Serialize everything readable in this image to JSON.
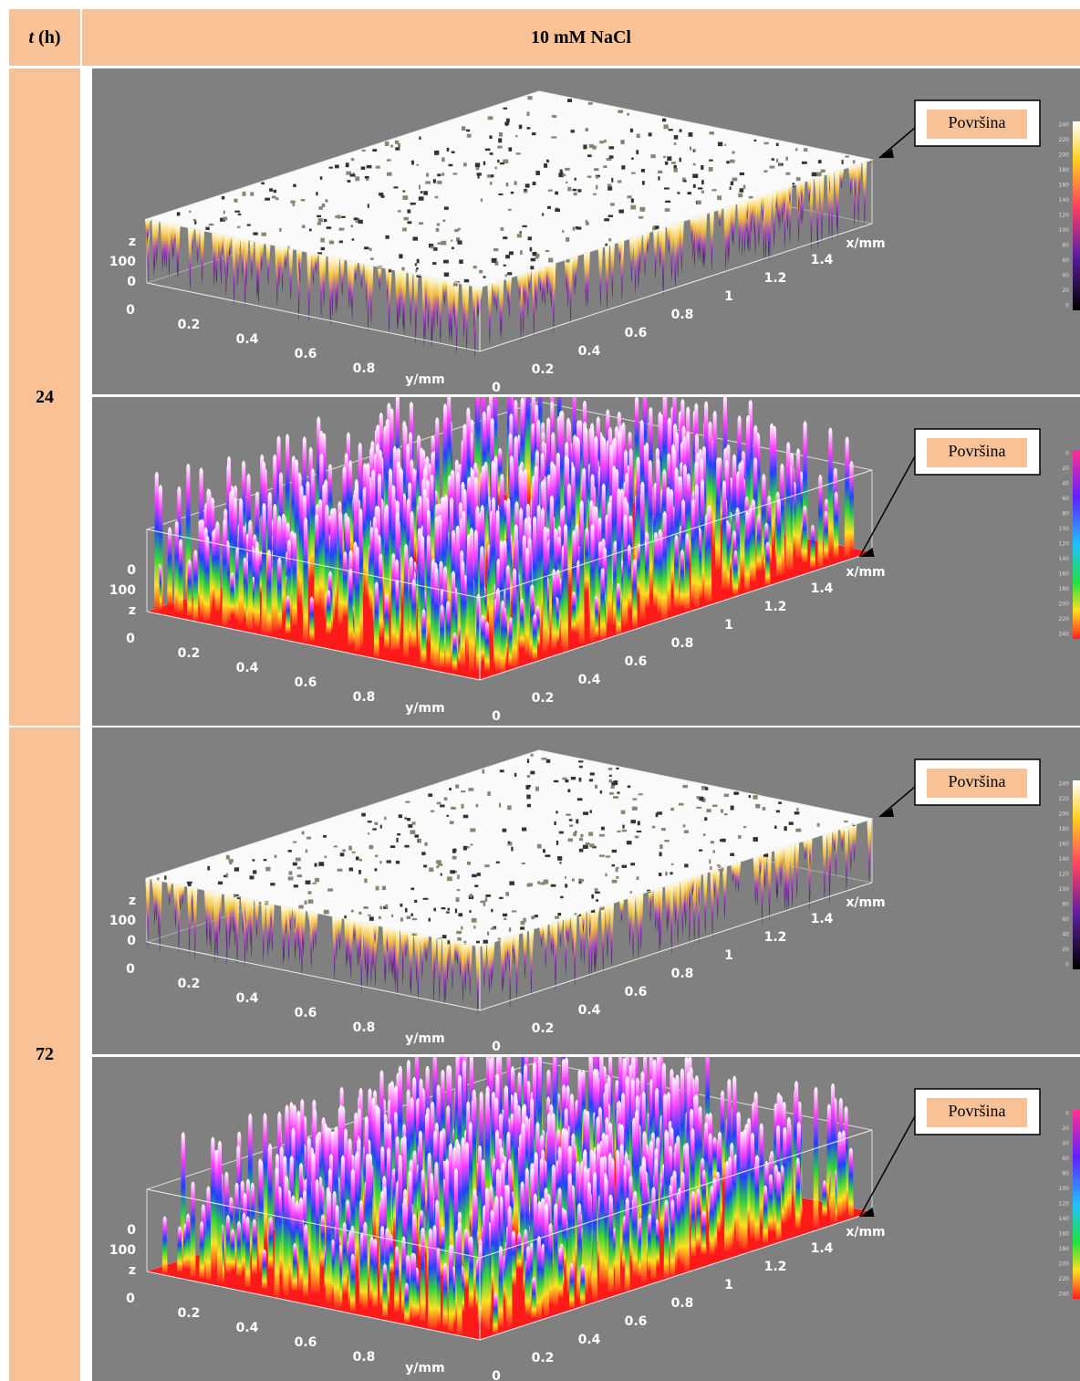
{
  "header": {
    "t_symbol": "t",
    "t_unit": "(h)",
    "title": "10 mM NaCl"
  },
  "rows": [
    {
      "time": "24",
      "panels": [
        {
          "callout": "Površina",
          "z_axis": [
            "z",
            "100",
            "0"
          ],
          "y_ticks": [
            "0",
            "0.2",
            "0.4",
            "0.6",
            "0.8"
          ],
          "y_label": "y/mm",
          "x_ticks": [
            "0",
            "0.2",
            "0.4",
            "0.6",
            "0.8",
            "1",
            "1.2",
            "1.4"
          ],
          "x_label": "x/mm",
          "colorbar_ticks": [
            "240",
            "220",
            "200",
            "180",
            "160",
            "140",
            "120",
            "100",
            "80",
            "60",
            "40",
            "20",
            "0"
          ]
        },
        {
          "callout": "Površina",
          "z_axis": [
            "0",
            "100",
            "z"
          ],
          "y_ticks": [
            "0",
            "0.2",
            "0.4",
            "0.6",
            "0.8"
          ],
          "y_label": "y/mm",
          "x_ticks": [
            "0",
            "0.2",
            "0.4",
            "0.6",
            "0.8",
            "1",
            "1.2",
            "1.4"
          ],
          "x_label": "x/mm",
          "colorbar_ticks": [
            "0",
            "20",
            "40",
            "60",
            "80",
            "100",
            "120",
            "140",
            "160",
            "180",
            "200",
            "220",
            "240"
          ]
        }
      ]
    },
    {
      "time": "72",
      "panels": [
        {
          "callout": "Površina",
          "z_axis": [
            "z",
            "100",
            "0"
          ],
          "y_ticks": [
            "0",
            "0.2",
            "0.4",
            "0.6",
            "0.8"
          ],
          "y_label": "y/mm",
          "x_ticks": [
            "0",
            "0.2",
            "0.4",
            "0.6",
            "0.8",
            "1",
            "1.2",
            "1.4"
          ],
          "x_label": "x/mm",
          "colorbar_ticks": [
            "240",
            "220",
            "200",
            "180",
            "160",
            "140",
            "120",
            "100",
            "80",
            "60",
            "40",
            "20",
            "0"
          ]
        },
        {
          "callout": "Površina",
          "z_axis": [
            "0",
            "100",
            "z"
          ],
          "y_ticks": [
            "0",
            "0.2",
            "0.4",
            "0.6",
            "0.8"
          ],
          "y_label": "y/mm",
          "x_ticks": [
            "0",
            "0.2",
            "0.4",
            "0.6",
            "0.8",
            "1",
            "1.2",
            "1.4"
          ],
          "x_label": "x/mm",
          "colorbar_ticks": [
            "0",
            "20",
            "40",
            "60",
            "80",
            "100",
            "120",
            "140",
            "160",
            "180",
            "200",
            "220",
            "240"
          ]
        }
      ]
    }
  ]
}
